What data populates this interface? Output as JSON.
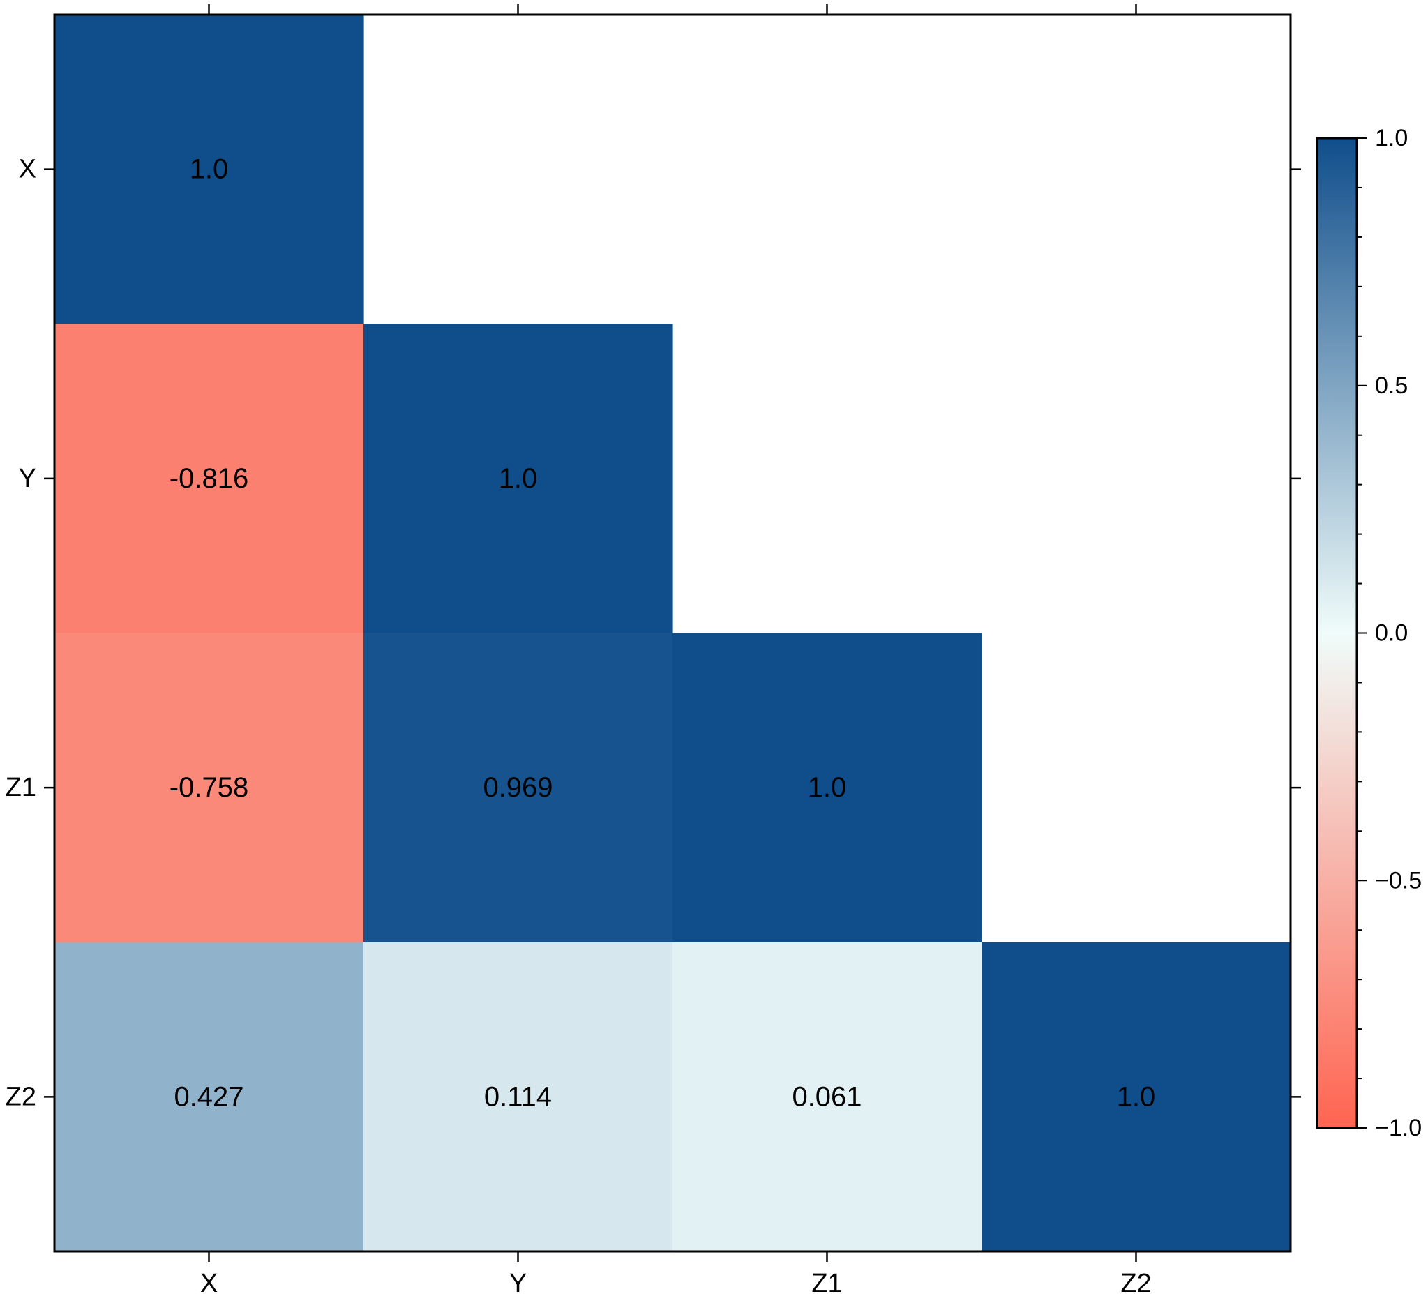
{
  "chart_data": {
    "type": "heatmap",
    "title": "",
    "xlabel": "",
    "ylabel": "",
    "categories_x": [
      "X",
      "Y",
      "Z1",
      "Z2"
    ],
    "categories_y": [
      "X",
      "Y",
      "Z1",
      "Z2"
    ],
    "mask": "upper-triangle",
    "cells": [
      {
        "row": 0,
        "col": 0,
        "value": 1.0,
        "label": "1.0"
      },
      {
        "row": 1,
        "col": 0,
        "value": -0.816,
        "label": "-0.816"
      },
      {
        "row": 1,
        "col": 1,
        "value": 1.0,
        "label": "1.0"
      },
      {
        "row": 2,
        "col": 0,
        "value": -0.758,
        "label": "-0.758"
      },
      {
        "row": 2,
        "col": 1,
        "value": 0.969,
        "label": "0.969"
      },
      {
        "row": 2,
        "col": 2,
        "value": 1.0,
        "label": "1.0"
      },
      {
        "row": 3,
        "col": 0,
        "value": 0.427,
        "label": "0.427"
      },
      {
        "row": 3,
        "col": 1,
        "value": 0.114,
        "label": "0.114"
      },
      {
        "row": 3,
        "col": 2,
        "value": 0.061,
        "label": "0.061"
      },
      {
        "row": 3,
        "col": 3,
        "value": 1.0,
        "label": "1.0"
      }
    ],
    "colorbar": {
      "range": [
        -1.0,
        1.0
      ],
      "ticks": [
        1.0,
        0.5,
        0.0,
        -0.5,
        -1.0
      ],
      "tick_labels": [
        "1.0",
        "0.5",
        "0.0",
        "−0.5",
        "−1.0"
      ],
      "colors": {
        "low": "#ff6450",
        "mid": "#f0fcfa",
        "high": "#104e8b"
      },
      "placement": "right"
    },
    "grid": false
  }
}
